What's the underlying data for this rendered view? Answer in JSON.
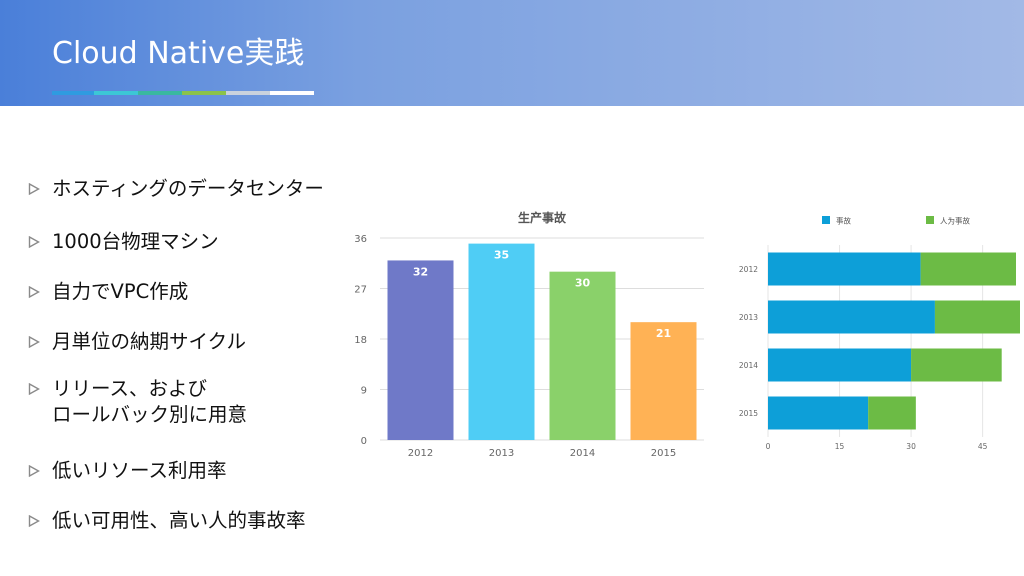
{
  "slide": {
    "title": "Cloud Native実践",
    "accent_colors": [
      "#2f9be0",
      "#3cc7d6",
      "#3ab8a0",
      "#8bc34a",
      "#c9d2dd",
      "#ffffff"
    ]
  },
  "bullets": [
    {
      "text": "ホスティングのデータセンター"
    },
    {
      "text": "1000台物理マシン"
    },
    {
      "text": "自力でVPC作成"
    },
    {
      "text": "月単位の納期サイクル"
    },
    {
      "text": "リリース、および",
      "text2": "ロールバック別に用意"
    },
    {
      "text": "低いリソース利用率"
    },
    {
      "text": "低い可用性、高い人的事故率"
    }
  ],
  "chart_data": [
    {
      "type": "bar",
      "title": "生产事故",
      "categories": [
        "2012",
        "2013",
        "2014",
        "2015"
      ],
      "values": [
        32,
        35,
        30,
        21
      ],
      "colors": [
        "#6f79c8",
        "#4fcdf5",
        "#8ad16a",
        "#ffb255"
      ],
      "yticks": [
        "0",
        "9",
        "18",
        "27",
        "36"
      ],
      "ylim": [
        0,
        36
      ],
      "grid": true
    },
    {
      "type": "bar",
      "orientation": "horizontal",
      "stacked": true,
      "categories": [
        "2012",
        "2013",
        "2014",
        "2015"
      ],
      "series": [
        {
          "name": "事故",
          "color": "#0d9fd8",
          "values": [
            32,
            35,
            30,
            21
          ]
        },
        {
          "name": "人为事故",
          "color": "#6cbb45",
          "values": [
            20,
            18,
            19,
            10
          ]
        }
      ],
      "xticks": [
        "0",
        "15",
        "30",
        "45"
      ],
      "xlim": [
        0,
        52
      ],
      "legend": "top",
      "grid": true
    }
  ]
}
